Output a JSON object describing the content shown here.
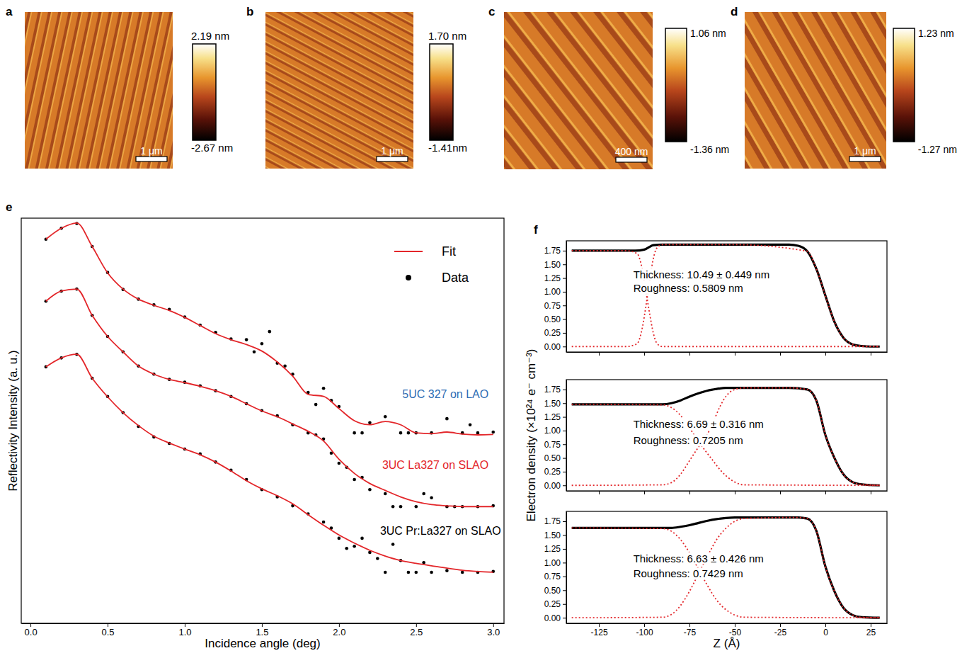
{
  "chart_data": [
    {
      "type": "image",
      "panel": "a",
      "colorbar_range": [
        -2.67,
        2.19
      ],
      "colorbar_ticks": [
        {
          "value": 2.19,
          "label": "2.19 nm"
        },
        {
          "value": -2.67,
          "label": "-2.67 nm"
        }
      ],
      "scale_bar": "1 μm"
    },
    {
      "type": "image",
      "panel": "b",
      "colorbar_range": [
        -1.41,
        1.7
      ],
      "colorbar_ticks": [
        {
          "value": 1.7,
          "label": "1.70 nm"
        },
        {
          "value": -1.41,
          "label": "-1.41nm"
        }
      ],
      "scale_bar": "1 μm"
    },
    {
      "type": "image",
      "panel": "c",
      "colorbar_range": [
        -1.36,
        1.06
      ],
      "colorbar_ticks": [
        {
          "value": 1.06,
          "label": "1.06 nm"
        },
        {
          "value": -1.36,
          "label": "-1.36 nm"
        }
      ],
      "scale_bar": "400 nm"
    },
    {
      "type": "image",
      "panel": "d",
      "colorbar_range": [
        -1.27,
        1.23
      ],
      "colorbar_ticks": [
        {
          "value": 1.23,
          "label": "1.23 nm"
        },
        {
          "value": -1.27,
          "label": "-1.27 nm"
        }
      ],
      "scale_bar": "1 μm"
    },
    {
      "type": "scatter",
      "panel": "e",
      "xlabel": "Incidence angle (deg)",
      "ylabel": "Reflectivity Intensity (a. u.)",
      "xlim": [
        -0.06,
        3.07
      ],
      "ylim": [
        0,
        10
      ],
      "xticks": [
        {
          "value": 0,
          "label": "0.0"
        },
        0.5,
        {
          "value": 1,
          "label": "1.0"
        },
        1.5,
        {
          "value": 2,
          "label": "2.0"
        },
        2.5,
        {
          "value": 3,
          "label": "3.0"
        }
      ],
      "tick_labels": "x",
      "legend": "upper right",
      "series": [
        {
          "name": "Fit",
          "type": "line",
          "color": "#e3262a",
          "x": [
            0.1,
            0.2,
            0.3,
            0.4,
            0.5,
            0.6,
            0.7,
            0.8,
            0.9,
            1.0,
            1.1,
            1.2,
            1.3,
            1.4,
            1.5,
            1.6,
            1.7,
            1.8,
            1.9,
            2.0,
            2.1,
            2.2,
            2.3,
            2.4,
            2.5,
            2.6,
            2.7,
            2.8,
            2.9,
            3.0
          ],
          "values": [
            9.48,
            9.75,
            9.88,
            9.3,
            8.65,
            8.25,
            8.0,
            7.85,
            7.72,
            7.55,
            7.35,
            7.15,
            7.0,
            6.88,
            6.72,
            6.45,
            6.1,
            5.65,
            5.6,
            5.3,
            5.0,
            4.9,
            4.98,
            4.9,
            4.7,
            4.68,
            4.72,
            4.67,
            4.65,
            4.66
          ]
        },
        {
          "name": "Data",
          "type": "scatter",
          "color": "#000000",
          "marker": "circle",
          "x": [
            0.1,
            0.2,
            0.3,
            0.4,
            0.5,
            0.6,
            0.7,
            0.8,
            0.9,
            1.0,
            1.1,
            1.2,
            1.3,
            1.4,
            1.5,
            1.6,
            1.7,
            1.8,
            1.9,
            2.0,
            2.1,
            2.2,
            2.3,
            2.4,
            2.5,
            2.6,
            2.7,
            2.8,
            2.9,
            3.0,
            1.45,
            1.55,
            1.65,
            1.85,
            1.95,
            2.15,
            2.45,
            2.85
          ],
          "values": [
            9.48,
            9.75,
            9.87,
            9.3,
            8.66,
            8.24,
            8.0,
            7.86,
            7.75,
            7.56,
            7.36,
            7.18,
            7.02,
            7.0,
            6.9,
            6.42,
            6.15,
            5.7,
            5.8,
            5.35,
            4.7,
            4.95,
            5.1,
            4.7,
            4.7,
            4.7,
            5.05,
            4.7,
            4.7,
            4.72,
            6.7,
            7.2,
            6.35,
            5.4,
            5.5,
            4.7,
            4.7,
            4.9
          ]
        },
        {
          "name": "Fit",
          "type": "line",
          "color": "#e3262a",
          "x": [
            0.1,
            0.2,
            0.3,
            0.4,
            0.5,
            0.6,
            0.7,
            0.8,
            0.9,
            1.0,
            1.1,
            1.2,
            1.3,
            1.4,
            1.5,
            1.6,
            1.7,
            1.8,
            1.9,
            2.0,
            2.1,
            2.2,
            2.3,
            2.4,
            2.5,
            2.6,
            2.7,
            2.8,
            2.9,
            3.0
          ],
          "values": [
            7.95,
            8.2,
            8.25,
            7.6,
            7.08,
            6.7,
            6.35,
            6.15,
            6.02,
            5.94,
            5.85,
            5.74,
            5.6,
            5.42,
            5.24,
            5.1,
            4.92,
            4.74,
            4.5,
            4.05,
            3.7,
            3.45,
            3.28,
            3.12,
            3.0,
            2.93,
            2.9,
            2.88,
            2.88,
            2.88
          ]
        },
        {
          "name": "Data",
          "type": "scatter",
          "color": "#000000",
          "marker": "circle",
          "x": [
            0.1,
            0.2,
            0.3,
            0.4,
            0.5,
            0.6,
            0.7,
            0.8,
            0.9,
            1.0,
            1.1,
            1.2,
            1.3,
            1.4,
            1.5,
            1.6,
            1.7,
            1.8,
            1.9,
            2.0,
            2.1,
            2.2,
            2.3,
            2.4,
            2.5,
            2.6,
            2.7,
            2.8,
            2.9,
            3.0,
            1.85,
            1.95,
            2.05,
            2.15,
            2.35,
            2.55,
            2.75
          ],
          "values": [
            7.95,
            8.2,
            8.25,
            7.6,
            7.08,
            6.7,
            6.35,
            6.15,
            6.02,
            5.95,
            5.86,
            5.74,
            5.6,
            5.42,
            5.25,
            5.12,
            4.9,
            4.7,
            4.55,
            3.95,
            3.55,
            3.3,
            3.2,
            2.88,
            2.88,
            3.1,
            2.88,
            2.88,
            2.88,
            2.9,
            4.65,
            4.2,
            3.85,
            3.6,
            2.88,
            3.2,
            2.88
          ]
        },
        {
          "name": "Fit",
          "type": "line",
          "color": "#e3262a",
          "x": [
            0.1,
            0.2,
            0.3,
            0.4,
            0.5,
            0.6,
            0.7,
            0.8,
            0.9,
            1.0,
            1.1,
            1.2,
            1.3,
            1.4,
            1.5,
            1.6,
            1.7,
            1.8,
            1.9,
            2.0,
            2.1,
            2.2,
            2.3,
            2.4,
            2.5,
            2.6,
            2.7,
            2.8,
            2.9,
            3.0
          ],
          "values": [
            6.33,
            6.55,
            6.64,
            6.05,
            5.59,
            5.2,
            4.88,
            4.62,
            4.45,
            4.3,
            4.16,
            3.98,
            3.76,
            3.52,
            3.32,
            3.15,
            2.95,
            2.68,
            2.42,
            2.18,
            1.98,
            1.8,
            1.66,
            1.55,
            1.48,
            1.42,
            1.36,
            1.31,
            1.28,
            1.26
          ]
        },
        {
          "name": "Data",
          "type": "scatter",
          "color": "#000000",
          "marker": "circle",
          "x": [
            0.1,
            0.2,
            0.3,
            0.4,
            0.5,
            0.6,
            0.7,
            0.8,
            0.9,
            1.0,
            1.1,
            1.2,
            1.3,
            1.4,
            1.5,
            1.6,
            1.7,
            1.8,
            1.9,
            2.0,
            2.1,
            2.2,
            2.3,
            2.4,
            2.5,
            2.6,
            2.7,
            2.8,
            2.9,
            3.0,
            1.95,
            2.05,
            2.15,
            2.25,
            2.35,
            2.45,
            2.55
          ],
          "values": [
            6.33,
            6.55,
            6.64,
            6.05,
            5.6,
            5.2,
            4.86,
            4.6,
            4.44,
            4.3,
            4.18,
            3.98,
            3.78,
            3.55,
            3.3,
            3.12,
            2.9,
            2.7,
            2.5,
            2.1,
            1.9,
            1.75,
            1.26,
            1.55,
            1.26,
            1.26,
            1.3,
            1.26,
            1.26,
            1.28,
            2.35,
            1.85,
            2.1,
            1.6,
            1.95,
            1.26,
            1.5
          ]
        }
      ],
      "annotations": [
        {
          "text": "5UC 327 on LAO",
          "color": "#2e6db4",
          "x": 2.97,
          "y": 5.56
        },
        {
          "text": "3UC La327 on SLAO",
          "color": "#e3262a",
          "x": 2.97,
          "y": 3.81
        },
        {
          "text": "3UC Pr:La327 on SLAO",
          "color": "#000000",
          "x": 3.05,
          "y": 2.19
        }
      ]
    },
    {
      "type": "line",
      "panel": "f",
      "xlim": [
        -143,
        34
      ],
      "ylim": [
        -0.1,
        1.93
      ],
      "xticks": [
        -125,
        -100,
        -75,
        -50,
        -25,
        0,
        25
      ],
      "yticks": [
        {
          "value": 0,
          "label": "0.00"
        },
        0.25,
        {
          "value": 0.5,
          "label": "0.50"
        },
        0.75,
        {
          "value": 1,
          "label": "1.00"
        },
        1.25,
        {
          "value": 1.5,
          "label": "1.50"
        },
        1.75
      ],
      "tick_labels": "y",
      "series": [
        {
          "color": "#000000",
          "line_style": "solid",
          "x": [
            -140,
            -120,
            -105,
            -100,
            -97,
            -95,
            -90,
            -50,
            -20,
            -15,
            -10,
            -5,
            0,
            5,
            10,
            15,
            20,
            25,
            30
          ],
          "values": [
            1.75,
            1.75,
            1.75,
            1.77,
            1.82,
            1.85,
            1.86,
            1.86,
            1.86,
            1.84,
            1.74,
            1.42,
            0.93,
            0.45,
            0.16,
            0.04,
            0.01,
            0,
            0
          ]
        },
        {
          "color": "#e3262a",
          "line_style": "dotted",
          "x": [
            -140,
            -110,
            -104,
            -101,
            -99,
            -97,
            -95,
            -93,
            -90,
            -50,
            -10,
            -5,
            0,
            5,
            10,
            15,
            20,
            30
          ],
          "values": [
            0,
            0,
            0.05,
            0.35,
            0.75,
            1.2,
            1.6,
            1.8,
            1.86,
            1.86,
            1.74,
            1.42,
            0.93,
            0.45,
            0.16,
            0.04,
            0.01,
            0
          ]
        },
        {
          "color": "#e3262a",
          "line_style": "dotted",
          "x": [
            -140,
            -110,
            -104,
            -101,
            -99,
            -97,
            -95,
            -93,
            -90,
            30
          ],
          "values": [
            1.75,
            1.75,
            1.7,
            1.4,
            1.0,
            0.6,
            0.25,
            0.06,
            0,
            0
          ]
        }
      ],
      "annotations": [
        {
          "text": "Thickness: 10.49 ± 0.449 nm",
          "x": -106,
          "y": 1.25
        },
        {
          "text": "Roughness: 0.5809 nm",
          "x": -106,
          "y": 1.0
        }
      ]
    },
    {
      "type": "line",
      "xlim": [
        -143,
        34
      ],
      "ylim": [
        -0.1,
        1.93
      ],
      "ylabel": "Electron density (×10²⁴ e⁻ cm⁻³)",
      "xticks": [
        -125,
        -100,
        -75,
        -50,
        -25,
        0,
        25
      ],
      "yticks": [
        {
          "value": 0,
          "label": "0.00"
        },
        0.25,
        {
          "value": 0.5,
          "label": "0.50"
        },
        0.75,
        {
          "value": 1,
          "label": "1.00"
        },
        1.25,
        {
          "value": 1.5,
          "label": "1.50"
        },
        1.75
      ],
      "tick_labels": "y",
      "series": [
        {
          "color": "#000000",
          "line_style": "solid",
          "x": [
            -140,
            -90,
            -85,
            -80,
            -75,
            -70,
            -65,
            -60,
            -55,
            -20,
            -10,
            -5,
            0,
            5,
            10,
            15,
            20,
            30
          ],
          "values": [
            1.48,
            1.48,
            1.5,
            1.55,
            1.62,
            1.68,
            1.73,
            1.76,
            1.78,
            1.78,
            1.75,
            1.55,
            0.92,
            0.5,
            0.2,
            0.06,
            0.02,
            0
          ]
        },
        {
          "color": "#e3262a",
          "line_style": "dotted",
          "x": [
            -140,
            -90,
            -85,
            -80,
            -75,
            -70,
            -66,
            -62,
            -58,
            -55,
            -50,
            -45,
            -20,
            -10,
            -5,
            0,
            5,
            10,
            15,
            20,
            30
          ],
          "values": [
            0,
            0.01,
            0.05,
            0.2,
            0.45,
            0.7,
            0.88,
            1.15,
            1.45,
            1.62,
            1.75,
            1.78,
            1.78,
            1.75,
            1.55,
            0.92,
            0.5,
            0.2,
            0.06,
            0.02,
            0
          ]
        },
        {
          "color": "#e3262a",
          "line_style": "dotted",
          "x": [
            -140,
            -90,
            -85,
            -80,
            -75,
            -70,
            -66,
            -62,
            -58,
            -55,
            -50,
            -45,
            30
          ],
          "values": [
            1.48,
            1.47,
            1.42,
            1.28,
            1.05,
            0.8,
            0.62,
            0.45,
            0.28,
            0.18,
            0.06,
            0.01,
            0
          ]
        }
      ],
      "annotations": [
        {
          "text": "Thickness: 6.69 ± 0.316 nm",
          "x": -106,
          "y": 1.05
        },
        {
          "text": "Roughness: 0.7205 nm",
          "x": -106,
          "y": 0.75
        }
      ]
    },
    {
      "type": "line",
      "xlim": [
        -143,
        34
      ],
      "ylim": [
        -0.1,
        1.93
      ],
      "xlabel": "Z (Å)",
      "xticks": [
        -125,
        -100,
        -75,
        -50,
        -25,
        0,
        25
      ],
      "yticks": [
        {
          "value": 0,
          "label": "0.00"
        },
        0.25,
        {
          "value": 0.5,
          "label": "0.50"
        },
        0.75,
        {
          "value": 1,
          "label": "1.00"
        },
        1.25,
        {
          "value": 1.5,
          "label": "1.50"
        },
        1.75
      ],
      "series": [
        {
          "color": "#000000",
          "line_style": "solid",
          "x": [
            -140,
            -85,
            -80,
            -75,
            -70,
            -65,
            -60,
            -55,
            -50,
            -15,
            -10,
            -5,
            0,
            5,
            10,
            15,
            20,
            30
          ],
          "values": [
            1.63,
            1.63,
            1.65,
            1.68,
            1.72,
            1.76,
            1.79,
            1.81,
            1.82,
            1.82,
            1.8,
            1.58,
            0.93,
            0.48,
            0.18,
            0.05,
            0.01,
            0
          ]
        },
        {
          "color": "#e3262a",
          "line_style": "dotted",
          "x": [
            -140,
            -90,
            -85,
            -80,
            -75,
            -70,
            -65,
            -60,
            -55,
            -50,
            -45,
            -15,
            -10,
            -5,
            0,
            5,
            10,
            15,
            20,
            30
          ],
          "values": [
            0,
            0.01,
            0.06,
            0.22,
            0.48,
            0.8,
            1.12,
            1.42,
            1.62,
            1.75,
            1.8,
            1.82,
            1.8,
            1.58,
            0.93,
            0.48,
            0.18,
            0.05,
            0.01,
            0
          ]
        },
        {
          "color": "#e3262a",
          "line_style": "dotted",
          "x": [
            -140,
            -90,
            -85,
            -80,
            -75,
            -70,
            -65,
            -60,
            -55,
            -50,
            -45,
            30
          ],
          "values": [
            1.63,
            1.62,
            1.57,
            1.42,
            1.18,
            0.88,
            0.58,
            0.32,
            0.15,
            0.05,
            0.01,
            0
          ]
        }
      ],
      "annotations": [
        {
          "text": "Thickness: 6.63 ± 0.426 nm",
          "x": -106,
          "y": 1.01
        },
        {
          "text": "Roughness: 0.7429 nm",
          "x": -106,
          "y": 0.73
        }
      ]
    }
  ]
}
